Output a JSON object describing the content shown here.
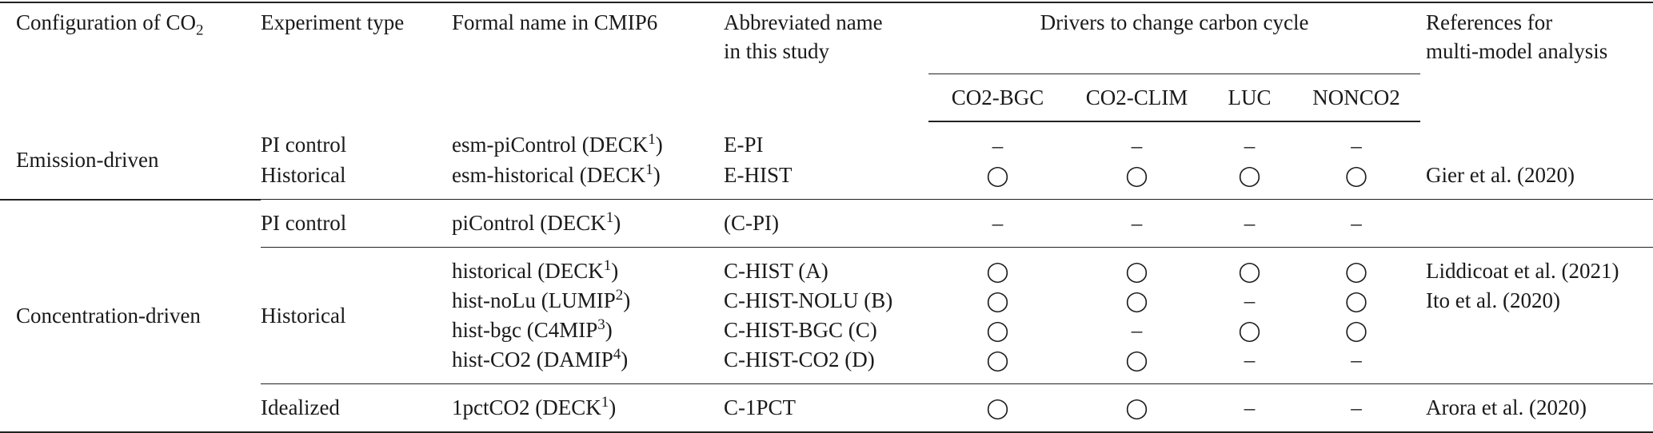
{
  "header": {
    "configuration": {
      "text": "Configuration of CO",
      "sub": "2"
    },
    "experiment_type": "Experiment type",
    "formal_name": "Formal name in CMIP6",
    "abbreviated_name": [
      "Abbreviated name",
      "in this study"
    ],
    "drivers": "Drivers to change carbon cycle",
    "driver_columns": [
      "CO2-BGC",
      "CO2-CLIM",
      "LUC",
      "NONCO2"
    ],
    "references": [
      "References for",
      "multi-model analysis"
    ]
  },
  "groups": [
    {
      "configuration": "Emission-driven",
      "subgroups": [
        {
          "experiment": "PI control",
          "rows": [
            {
              "formal": {
                "name": "esm-piControl (DECK",
                "sup": "1",
                "close": ")"
              },
              "abbrev": "E-PI",
              "drivers": [
                "–",
                "–",
                "–",
                "–"
              ]
            }
          ]
        },
        {
          "experiment": "Historical",
          "rows": [
            {
              "formal": {
                "name": "esm-historical (DECK",
                "sup": "1",
                "close": ")"
              },
              "abbrev": "E-HIST",
              "drivers": [
                "◯",
                "◯",
                "◯",
                "◯"
              ],
              "reference": "Gier et al. (2020)"
            }
          ]
        }
      ]
    },
    {
      "configuration": "Concentration-driven",
      "subgroups": [
        {
          "experiment": "PI control",
          "rows": [
            {
              "formal": {
                "name": "piControl (DECK",
                "sup": "1",
                "close": ")"
              },
              "abbrev": "(C-PI)",
              "drivers": [
                "–",
                "–",
                "–",
                "–"
              ]
            }
          ]
        },
        {
          "experiment": "Historical",
          "rows": [
            {
              "formal": {
                "name": "historical (DECK",
                "sup": "1",
                "close": ")"
              },
              "abbrev": "C-HIST (A)",
              "drivers": [
                "◯",
                "◯",
                "◯",
                "◯"
              ],
              "reference": "Liddicoat et al. (2021)"
            },
            {
              "formal": {
                "name": "hist-noLu (LUMIP",
                "sup": "2",
                "close": ")"
              },
              "abbrev": "C-HIST-NOLU (B)",
              "drivers": [
                "◯",
                "◯",
                "–",
                "◯"
              ],
              "reference": "Ito et al. (2020)"
            },
            {
              "formal": {
                "name": "hist-bgc (C4MIP",
                "sup": "3",
                "close": ")"
              },
              "abbrev": "C-HIST-BGC (C)",
              "drivers": [
                "◯",
                "–",
                "◯",
                "◯"
              ]
            },
            {
              "formal": {
                "name": "hist-CO2 (DAMIP",
                "sup": "4",
                "close": ")"
              },
              "abbrev": "C-HIST-CO2 (D)",
              "drivers": [
                "◯",
                "◯",
                "–",
                "–"
              ]
            }
          ]
        },
        {
          "experiment": "Idealized",
          "rows": [
            {
              "formal": {
                "name": "1pctCO2 (DECK",
                "sup": "1",
                "close": ")"
              },
              "abbrev": "C-1PCT",
              "drivers": [
                "◯",
                "◯",
                "–",
                "–"
              ],
              "reference": "Arora et al. (2020)"
            }
          ]
        }
      ]
    }
  ]
}
